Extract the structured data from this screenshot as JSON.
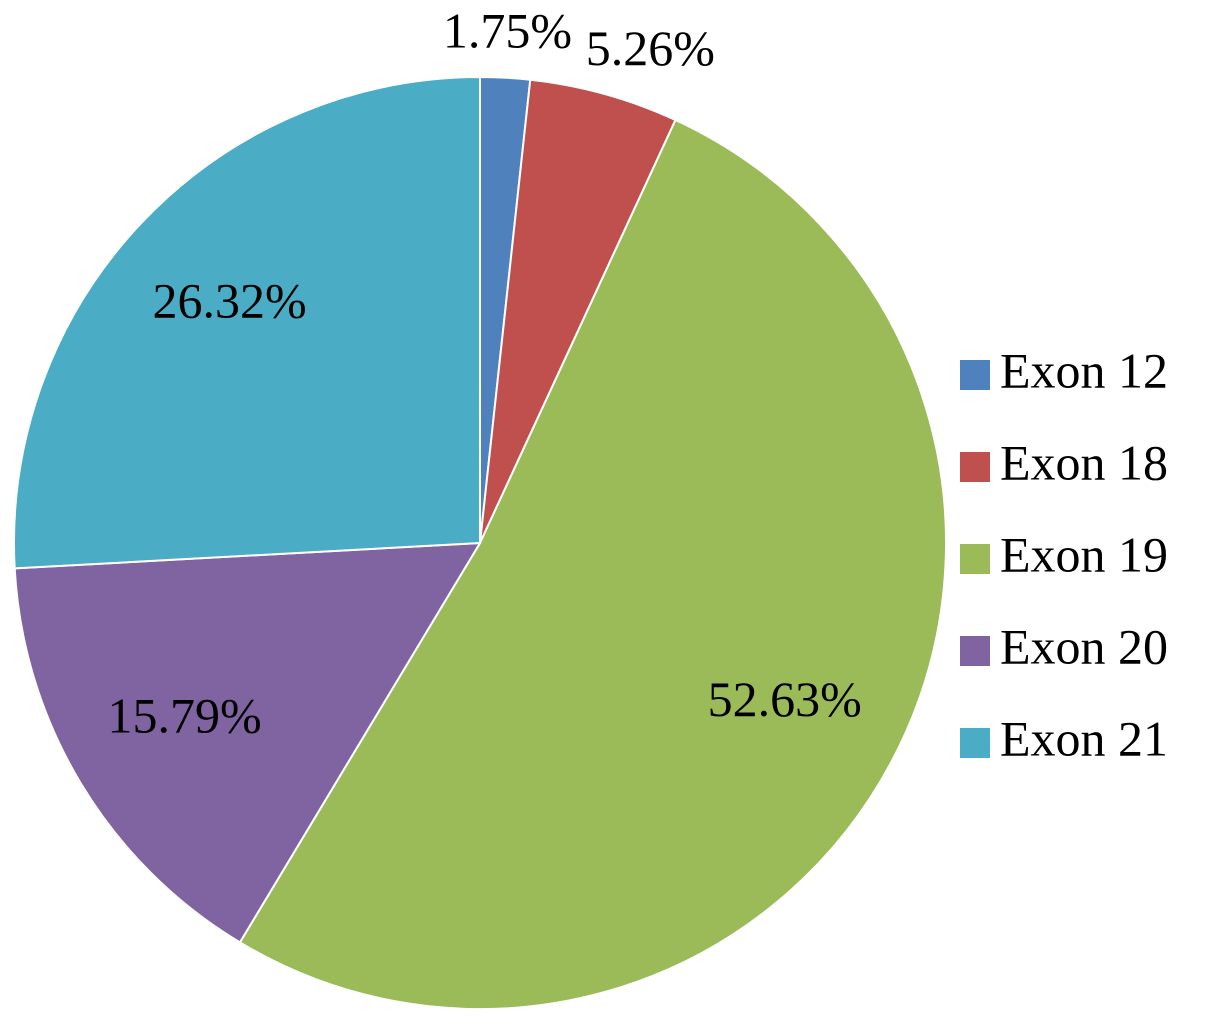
{
  "chart_data": {
    "type": "pie",
    "categories": [
      "Exon 12",
      "Exon 18",
      "Exon 19",
      "Exon 20",
      "Exon 21"
    ],
    "values": [
      1.75,
      5.26,
      52.63,
      15.79,
      26.32
    ],
    "value_labels": [
      "1.75%",
      "5.26%",
      "52.63%",
      "15.79%",
      "26.32%"
    ],
    "colors": [
      "#4f81bd",
      "#c0504d",
      "#9bbb59",
      "#8064a2",
      "#4bacc6"
    ],
    "legend": "right"
  }
}
